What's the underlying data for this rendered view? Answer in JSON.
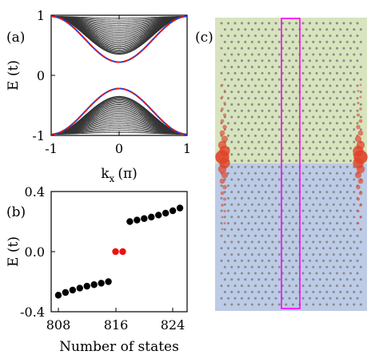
{
  "figure": {
    "panel_a_label": "(a)",
    "panel_b_label": "(b)",
    "panel_c_label": "(c)"
  },
  "chart_data": [
    {
      "panel": "a",
      "type": "line",
      "xlabel": "k",
      "xlabel_sub": "x",
      "xlabel_unit": "(π)",
      "ylabel": "E (t)",
      "xlim": [
        -1,
        1
      ],
      "ylim": [
        -1,
        1
      ],
      "xticks": [
        "-1",
        "0",
        "1"
      ],
      "yticks": [
        "1",
        "0",
        "-1"
      ],
      "edge_gap": 0.22,
      "bulk_band_count": 26,
      "bulk_min_energy": 0.35,
      "band_top": 0.98,
      "series": [
        {
          "role": "bulk-bands",
          "color": "#333333"
        },
        {
          "role": "edge-band-solid",
          "color": "#2b3fd8"
        },
        {
          "role": "edge-band-dashed",
          "color": "#e01a1a"
        }
      ]
    },
    {
      "panel": "b",
      "type": "scatter",
      "xlabel": "Number of states",
      "ylabel": "E (t)",
      "xlim": [
        807,
        826
      ],
      "ylim": [
        -0.4,
        0.4
      ],
      "xticks": [
        "808",
        "816",
        "824"
      ],
      "yticks": [
        "0.4",
        "0.0",
        "-0.4"
      ],
      "points_lower": {
        "color": "#000000",
        "x": [
          807,
          808,
          809,
          810,
          811,
          812,
          813,
          814,
          815
        ],
        "y": [
          -0.305,
          -0.29,
          -0.272,
          -0.256,
          -0.243,
          -0.23,
          -0.22,
          -0.21,
          -0.2
        ]
      },
      "points_zero": {
        "color": "#ee1111",
        "x": [
          816,
          817
        ],
        "y": [
          0.0,
          0.0
        ]
      },
      "points_upper": {
        "color": "#000000",
        "x": [
          818,
          819,
          820,
          821,
          822,
          823,
          824,
          825,
          826
        ],
        "y": [
          0.2,
          0.21,
          0.22,
          0.23,
          0.243,
          0.256,
          0.272,
          0.29,
          0.305
        ]
      }
    },
    {
      "panel": "c",
      "type": "lattice",
      "top_region_color": "#d7e4bd",
      "bottom_region_color": "#bccbe6",
      "site_color": "#8a8a8a",
      "highlight_color": "#ff00ff",
      "edge_state_color": "#e0442a"
    }
  ]
}
